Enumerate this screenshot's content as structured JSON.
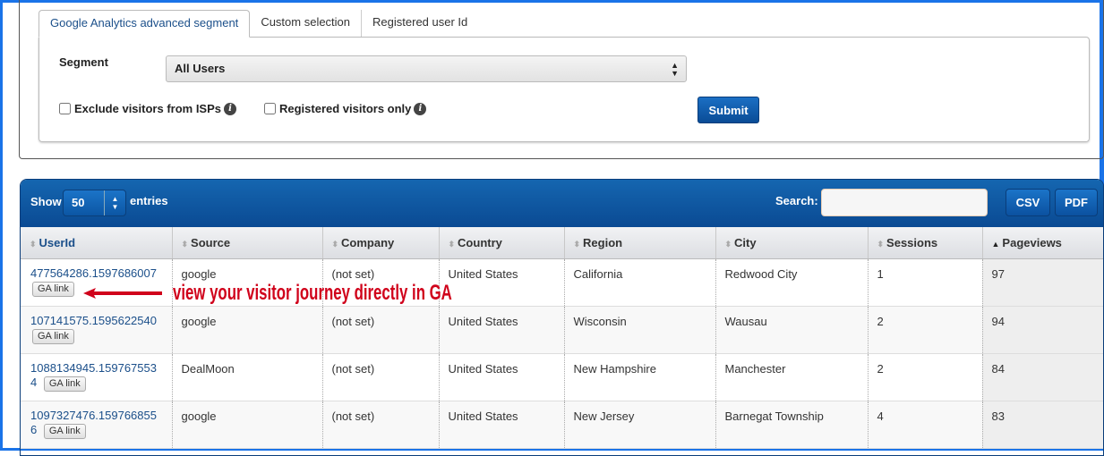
{
  "tabs": [
    {
      "label": "Google Analytics advanced segment",
      "active": true
    },
    {
      "label": "Custom selection"
    },
    {
      "label": "Registered user Id"
    }
  ],
  "form": {
    "segment_label": "Segment",
    "segment_value": "All Users",
    "exclude_isps": "Exclude visitors from ISPs",
    "registered_only": "Registered visitors only",
    "submit": "Submit"
  },
  "table": {
    "show": "Show",
    "length": "50",
    "entries": "entries",
    "search_label": "Search:",
    "search_value": "",
    "csv": "CSV",
    "pdf": "PDF",
    "columns": [
      "UserId",
      "Source",
      "Company",
      "Country",
      "Region",
      "City",
      "Sessions",
      "Pageviews"
    ],
    "sorted_column": "Pageviews",
    "ga_link": "GA link",
    "rows": [
      [
        "477564286.1597686007",
        "google",
        "(not set)",
        "United States",
        "California",
        "Redwood City",
        "1",
        "97"
      ],
      [
        "107141575.1595622540",
        "google",
        "(not set)",
        "United States",
        "Wisconsin",
        "Wausau",
        "2",
        "94"
      ],
      [
        "1088134945.1597675534",
        "DealMoon",
        "(not set)",
        "United States",
        "New Hampshire",
        "Manchester",
        "2",
        "84"
      ],
      [
        "1097327476.1597668556",
        "google",
        "(not set)",
        "United States",
        "New Jersey",
        "Barnegat Township",
        "4",
        "83"
      ]
    ]
  },
  "annotation": {
    "text": "view your visitor journey directly in GA",
    "color": "#d0021b"
  },
  "colors": {
    "header_blue": "#0a4a93",
    "link": "#1b4f8a"
  }
}
